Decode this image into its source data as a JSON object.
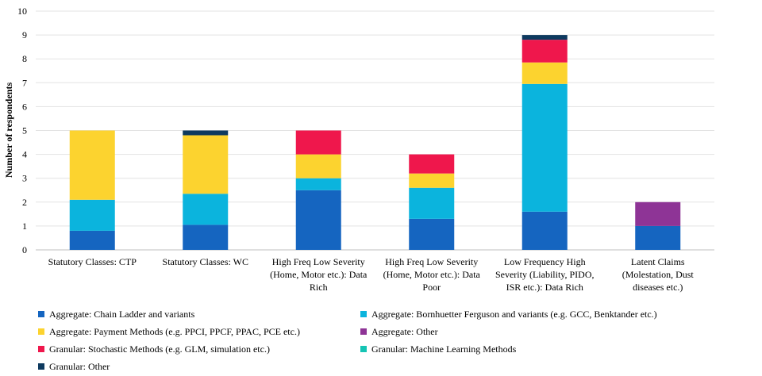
{
  "chart_data": {
    "type": "bar",
    "stacked": true,
    "ylabel": "Number of respondents",
    "ylim": [
      0,
      10
    ],
    "yticks": [
      0,
      1,
      2,
      3,
      4,
      5,
      6,
      7,
      8,
      9,
      10
    ],
    "grid": true,
    "legend_position": "bottom",
    "categories": [
      [
        "Statutory Classes: CTP"
      ],
      [
        "Statutory Classes: WC"
      ],
      [
        "High Freq Low Severity",
        "(Home, Motor etc.): Data",
        "Rich"
      ],
      [
        "High Freq Low Severity",
        "(Home, Motor etc.): Data",
        "Poor"
      ],
      [
        "Low Frequency High",
        "Severity (Liability, PIDO,",
        "ISR etc.): Data Rich"
      ],
      [
        "Latent Claims",
        "(Molestation, Dust",
        "diseases etc.)"
      ]
    ],
    "series": [
      {
        "name": "Aggregate: Chain Ladder and variants",
        "color": "#1565c0",
        "values": [
          0.8,
          1.05,
          2.5,
          1.3,
          1.6,
          1.0
        ]
      },
      {
        "name": "Aggregate: Bornhuetter Ferguson and variants (e.g. GCC, Benktander etc.)",
        "color": "#0bb4dd",
        "values": [
          1.3,
          1.3,
          0.5,
          1.3,
          5.35,
          0
        ]
      },
      {
        "name": "Aggregate: Payment Methods (e.g. PPCI, PPCF, PPAC, PCE etc.)",
        "color": "#fcd32f",
        "values": [
          2.9,
          2.45,
          1.0,
          0.6,
          0.9,
          0
        ]
      },
      {
        "name": "Aggregate: Other",
        "color": "#8e3496",
        "values": [
          0,
          0,
          0,
          0,
          0,
          1.0
        ]
      },
      {
        "name": "Granular: Stochastic Methods (e.g. GLM, simulation etc.)",
        "color": "#ef174c",
        "values": [
          0,
          0,
          1.0,
          0.8,
          0.95,
          0
        ]
      },
      {
        "name": "Granular: Machine Learning Methods",
        "color": "#15c4b4",
        "values": [
          0,
          0,
          0,
          0,
          0,
          0
        ]
      },
      {
        "name": "Granular: Other",
        "color": "#0e3a5f",
        "values": [
          0,
          0.2,
          0,
          0,
          0.2,
          0
        ]
      }
    ]
  }
}
